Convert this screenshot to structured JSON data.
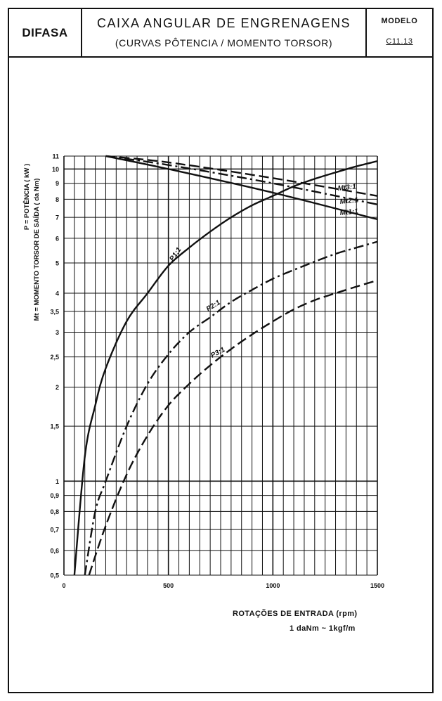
{
  "header": {
    "brand": "DIFASA",
    "title": "CAIXA ANGULAR DE ENGRENAGENS",
    "subtitle": "(CURVAS PÔTENCIA / MOMENTO TORSOR)",
    "model_label": "MODELO",
    "model_value": "C11.13"
  },
  "chart_data": {
    "type": "line",
    "xlabel": "ROTAÇÕES DE ENTRADA (rpm)",
    "note": "1 daNm ~ 1kgf/m",
    "ylabel_line1": "P = POTÊNCIA ( kW )",
    "ylabel_line2": "Mt = MOMENTO TORSOR DE SAÍDA ( da Nm)",
    "xlim": [
      0,
      1500
    ],
    "ylim": [
      0.5,
      11
    ],
    "yscale": "log",
    "grid": true,
    "x_ticks": [
      "0",
      "500",
      "1000",
      "1500"
    ],
    "y_ticks": [
      "0,5",
      "0,6",
      "0,7",
      "0,8",
      "0,9",
      "1",
      "1,5",
      "2",
      "2,5",
      "3",
      "3,5",
      "4",
      "5",
      "6",
      "7",
      "8",
      "9",
      "10",
      "11"
    ],
    "series": [
      {
        "name": "P1:1",
        "style": "solid",
        "x": [
          50,
          100,
          150,
          200,
          300,
          400,
          500,
          600,
          700,
          800,
          900,
          1000,
          1100,
          1200,
          1300,
          1400,
          1500
        ],
        "y": [
          0.5,
          1.2,
          1.75,
          2.3,
          3.25,
          4.0,
          4.9,
          5.6,
          6.3,
          7.0,
          7.65,
          8.2,
          8.8,
          9.3,
          9.75,
          10.2,
          10.6
        ]
      },
      {
        "name": "P2:1",
        "style": "dashdot",
        "x": [
          100,
          150,
          200,
          300,
          400,
          500,
          600,
          700,
          800,
          900,
          1000,
          1100,
          1200,
          1300,
          1400,
          1500
        ],
        "y": [
          0.5,
          0.8,
          1.0,
          1.5,
          2.05,
          2.55,
          3.0,
          3.35,
          3.75,
          4.1,
          4.45,
          4.75,
          5.05,
          5.35,
          5.6,
          5.85
        ]
      },
      {
        "name": "P3:1",
        "style": "dashed",
        "x": [
          120,
          200,
          300,
          400,
          500,
          600,
          700,
          800,
          900,
          1000,
          1100,
          1200,
          1300,
          1400,
          1500
        ],
        "y": [
          0.5,
          0.72,
          1.05,
          1.4,
          1.75,
          2.05,
          2.35,
          2.65,
          2.95,
          3.25,
          3.55,
          3.8,
          4.0,
          4.2,
          4.4
        ]
      },
      {
        "name": "Mt1:1",
        "style": "solid",
        "x": [
          200,
          500,
          1000,
          1500
        ],
        "y": [
          11.0,
          10.0,
          8.4,
          6.9
        ]
      },
      {
        "name": "Mt2:1",
        "style": "dashdot",
        "x": [
          200,
          500,
          1000,
          1500
        ],
        "y": [
          11.0,
          10.3,
          9.0,
          7.7
        ]
      },
      {
        "name": "Mt3:1",
        "style": "dashed",
        "x": [
          200,
          500,
          1000,
          1500
        ],
        "y": [
          11.0,
          10.5,
          9.35,
          8.2
        ]
      }
    ]
  }
}
